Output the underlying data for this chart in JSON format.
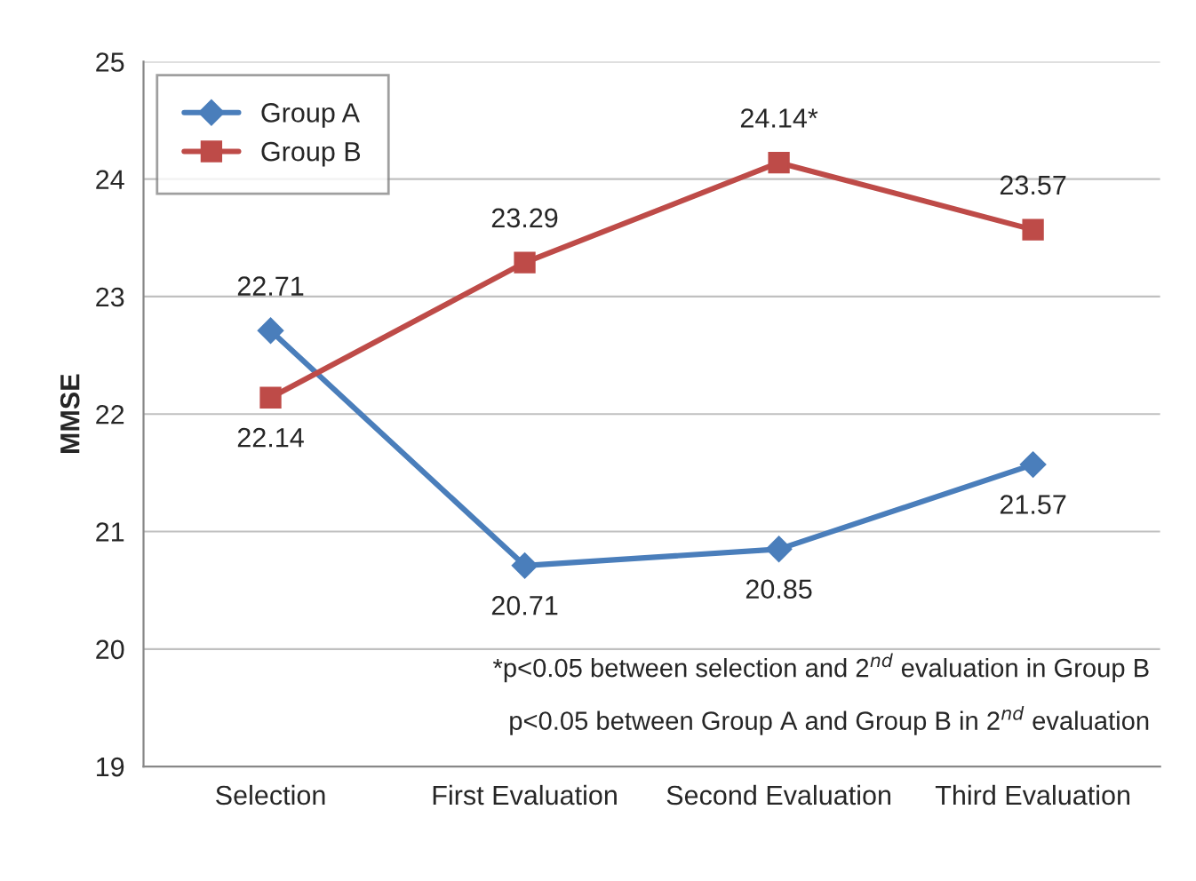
{
  "chart_data": {
    "type": "line",
    "ylabel": "MMSE",
    "categories": [
      "Selection",
      "First Evaluation",
      "Second Evaluation",
      "Third Evaluation"
    ],
    "series": [
      {
        "name": "Group A",
        "color": "#4a7ebb",
        "marker": "diamond",
        "values": [
          22.71,
          20.71,
          20.85,
          21.57
        ],
        "value_labels": [
          "22.71",
          "20.71",
          "20.85",
          "21.57"
        ]
      },
      {
        "name": "Group B",
        "color": "#be4b48",
        "marker": "square",
        "values": [
          22.14,
          23.29,
          24.14,
          23.57
        ],
        "value_labels": [
          "22.14",
          "23.29",
          "24.14*",
          "23.57"
        ]
      }
    ],
    "ylim": [
      19,
      25
    ],
    "yticks": [
      19,
      20,
      21,
      22,
      23,
      24,
      25
    ],
    "grid": "y",
    "legend": "top left",
    "line_style": "solid",
    "annotations": [
      "*p<0.05 between selection and 2$^{nd}$ evaluation in Group B",
      "p<0.05 between Group A and Group B in 2$^{nd}$ evaluation"
    ]
  }
}
